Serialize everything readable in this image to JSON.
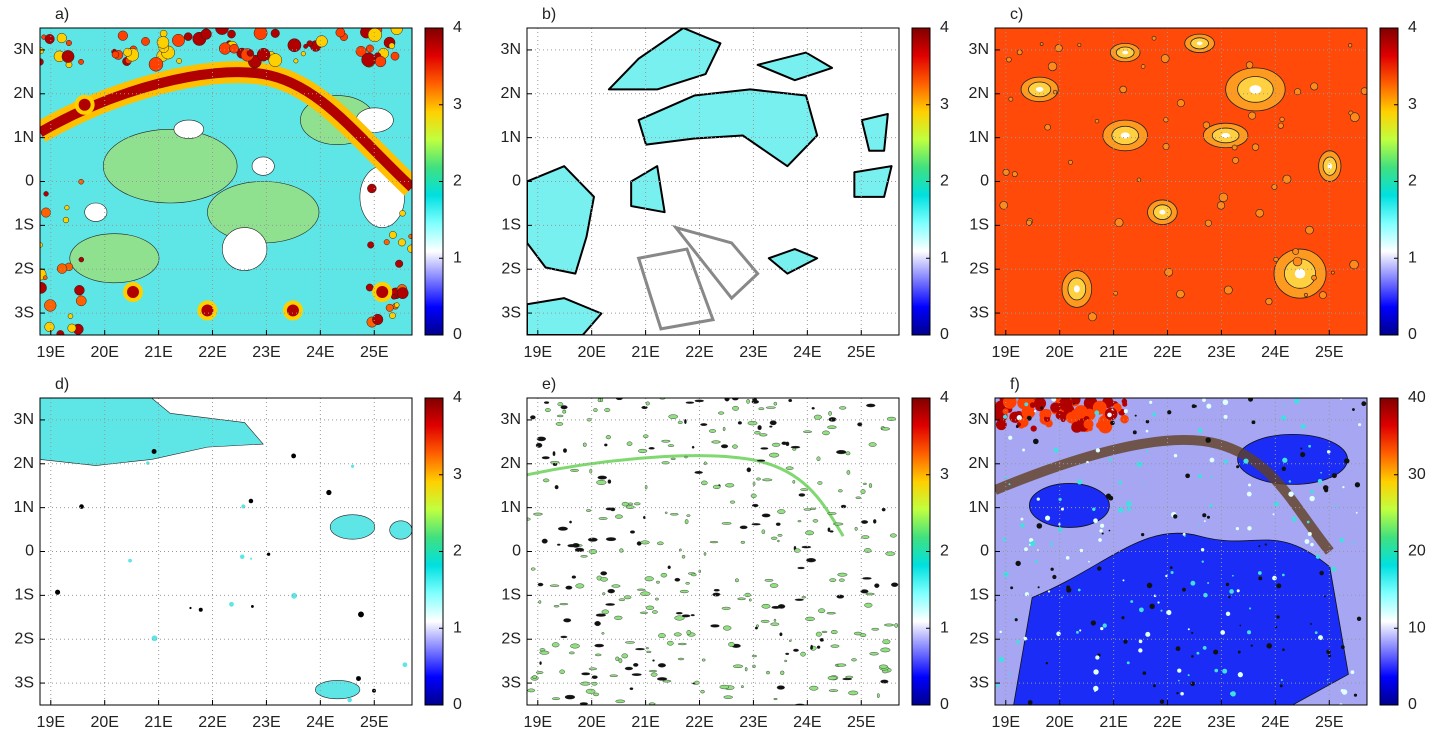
{
  "chart_data": [
    {
      "type": "contour",
      "title": "a)",
      "xlim": [
        18.8,
        25.7
      ],
      "ylim": [
        -3.5,
        3.5
      ],
      "xticks": [
        {
          "value": 19,
          "label": "19E"
        },
        {
          "value": 20,
          "label": "20E"
        },
        {
          "value": 21,
          "label": "21E"
        },
        {
          "value": 22,
          "label": "22E"
        },
        {
          "value": 23,
          "label": "23E"
        },
        {
          "value": 24,
          "label": "24E"
        },
        {
          "value": 25,
          "label": "25E"
        }
      ],
      "yticks": [
        {
          "value": 3,
          "label": "3N"
        },
        {
          "value": 2,
          "label": "2N"
        },
        {
          "value": 1,
          "label": "1N"
        },
        0,
        {
          "value": -1,
          "label": "1S"
        },
        {
          "value": -2,
          "label": "2S"
        },
        {
          "value": -3,
          "label": "3S"
        }
      ],
      "clim": [
        0,
        4
      ],
      "cticks": [
        0,
        1,
        2,
        3,
        4
      ],
      "grid": true,
      "colormap": [
        "#00008c",
        "#0000ff",
        "#8080ff",
        "#ffffff",
        "#80ffff",
        "#00e0e0",
        "#40e080",
        "#c0ff40",
        "#ffd000",
        "#ff6000",
        "#e00000",
        "#800000"
      ]
    },
    {
      "type": "contour",
      "title": "b)",
      "xlim": [
        18.8,
        25.7
      ],
      "ylim": [
        -3.5,
        3.5
      ],
      "xticks": [
        {
          "value": 19,
          "label": "19E"
        },
        {
          "value": 20,
          "label": "20E"
        },
        {
          "value": 21,
          "label": "21E"
        },
        {
          "value": 22,
          "label": "22E"
        },
        {
          "value": 23,
          "label": "23E"
        },
        {
          "value": 24,
          "label": "24E"
        },
        {
          "value": 25,
          "label": "25E"
        }
      ],
      "yticks": [
        {
          "value": 3,
          "label": "3N"
        },
        {
          "value": 2,
          "label": "2N"
        },
        {
          "value": 1,
          "label": "1N"
        },
        0,
        {
          "value": -1,
          "label": "1S"
        },
        {
          "value": -2,
          "label": "2S"
        },
        {
          "value": -3,
          "label": "3S"
        }
      ],
      "clim": [
        0,
        4
      ],
      "cticks": [
        0,
        1,
        2,
        3,
        4
      ],
      "grid": true,
      "colormap": [
        "#00008c",
        "#0000ff",
        "#8080ff",
        "#ffffff",
        "#80ffff",
        "#00e0e0",
        "#40e080",
        "#c0ff40",
        "#ffd000",
        "#ff6000",
        "#e00000",
        "#800000"
      ]
    },
    {
      "type": "contour",
      "title": "c)",
      "xlim": [
        18.8,
        25.7
      ],
      "ylim": [
        -3.5,
        3.5
      ],
      "xticks": [
        {
          "value": 19,
          "label": "19E"
        },
        {
          "value": 20,
          "label": "20E"
        },
        {
          "value": 21,
          "label": "21E"
        },
        {
          "value": 22,
          "label": "22E"
        },
        {
          "value": 23,
          "label": "23E"
        },
        {
          "value": 24,
          "label": "24E"
        },
        {
          "value": 25,
          "label": "25E"
        }
      ],
      "yticks": [
        {
          "value": 3,
          "label": "3N"
        },
        {
          "value": 2,
          "label": "2N"
        },
        {
          "value": 1,
          "label": "1N"
        },
        0,
        {
          "value": -1,
          "label": "1S"
        },
        {
          "value": -2,
          "label": "2S"
        },
        {
          "value": -3,
          "label": "3S"
        }
      ],
      "clim": [
        0,
        4
      ],
      "cticks": [
        0,
        1,
        2,
        3,
        4
      ],
      "grid": true,
      "colormap": [
        "#00008c",
        "#0000ff",
        "#8080ff",
        "#ffffff",
        "#80ffff",
        "#00e0e0",
        "#40e080",
        "#c0ff40",
        "#ffd000",
        "#ff6000",
        "#e00000",
        "#800000"
      ]
    },
    {
      "type": "contour",
      "title": "d)",
      "xlim": [
        18.8,
        25.7
      ],
      "ylim": [
        -3.5,
        3.5
      ],
      "xticks": [
        {
          "value": 19,
          "label": "19E"
        },
        {
          "value": 20,
          "label": "20E"
        },
        {
          "value": 21,
          "label": "21E"
        },
        {
          "value": 22,
          "label": "22E"
        },
        {
          "value": 23,
          "label": "23E"
        },
        {
          "value": 24,
          "label": "24E"
        },
        {
          "value": 25,
          "label": "25E"
        }
      ],
      "yticks": [
        {
          "value": 3,
          "label": "3N"
        },
        {
          "value": 2,
          "label": "2N"
        },
        {
          "value": 1,
          "label": "1N"
        },
        0,
        {
          "value": -1,
          "label": "1S"
        },
        {
          "value": -2,
          "label": "2S"
        },
        {
          "value": -3,
          "label": "3S"
        }
      ],
      "clim": [
        0,
        4
      ],
      "cticks": [
        0,
        1,
        2,
        3,
        4
      ],
      "grid": true,
      "colormap": [
        "#00008c",
        "#0000ff",
        "#8080ff",
        "#ffffff",
        "#80ffff",
        "#00e0e0",
        "#40e080",
        "#c0ff40",
        "#ffd000",
        "#ff6000",
        "#e00000",
        "#800000"
      ]
    },
    {
      "type": "contour",
      "title": "e)",
      "xlim": [
        18.8,
        25.7
      ],
      "ylim": [
        -3.5,
        3.5
      ],
      "xticks": [
        {
          "value": 19,
          "label": "19E"
        },
        {
          "value": 20,
          "label": "20E"
        },
        {
          "value": 21,
          "label": "21E"
        },
        {
          "value": 22,
          "label": "22E"
        },
        {
          "value": 23,
          "label": "23E"
        },
        {
          "value": 24,
          "label": "24E"
        },
        {
          "value": 25,
          "label": "25E"
        }
      ],
      "yticks": [
        {
          "value": 3,
          "label": "3N"
        },
        {
          "value": 2,
          "label": "2N"
        },
        {
          "value": 1,
          "label": "1N"
        },
        0,
        {
          "value": -1,
          "label": "1S"
        },
        {
          "value": -2,
          "label": "2S"
        },
        {
          "value": -3,
          "label": "3S"
        }
      ],
      "clim": [
        0,
        4
      ],
      "cticks": [
        0,
        1,
        2,
        3,
        4
      ],
      "grid": true,
      "colormap": [
        "#00008c",
        "#0000ff",
        "#8080ff",
        "#ffffff",
        "#80ffff",
        "#00e0e0",
        "#40e080",
        "#c0ff40",
        "#ffd000",
        "#ff6000",
        "#e00000",
        "#800000"
      ]
    },
    {
      "type": "contour",
      "title": "f)",
      "xlim": [
        18.8,
        25.7
      ],
      "ylim": [
        -3.5,
        3.5
      ],
      "xticks": [
        {
          "value": 19,
          "label": "19E"
        },
        {
          "value": 20,
          "label": "20E"
        },
        {
          "value": 21,
          "label": "21E"
        },
        {
          "value": 22,
          "label": "22E"
        },
        {
          "value": 23,
          "label": "23E"
        },
        {
          "value": 24,
          "label": "24E"
        },
        {
          "value": 25,
          "label": "25E"
        }
      ],
      "yticks": [
        {
          "value": 3,
          "label": "3N"
        },
        {
          "value": 2,
          "label": "2N"
        },
        {
          "value": 1,
          "label": "1N"
        },
        0,
        {
          "value": -1,
          "label": "1S"
        },
        {
          "value": -2,
          "label": "2S"
        },
        {
          "value": -3,
          "label": "3S"
        }
      ],
      "clim": [
        0,
        40
      ],
      "cticks": [
        0,
        10,
        20,
        30,
        40
      ],
      "grid": true,
      "colormap": [
        "#00008c",
        "#0000ff",
        "#8080ff",
        "#ffffff",
        "#80ffff",
        "#00e0e0",
        "#40e080",
        "#c0ff40",
        "#ffd000",
        "#ff6000",
        "#e00000",
        "#800000"
      ]
    }
  ]
}
